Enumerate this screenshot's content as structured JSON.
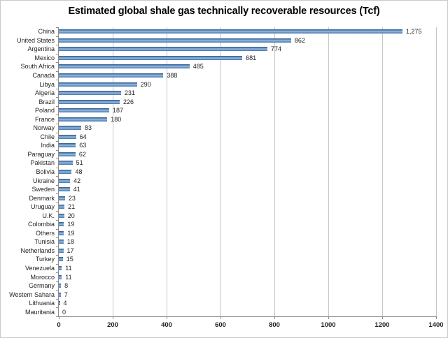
{
  "title": "Estimated global shale gas technically recoverable resources (Tcf)",
  "colors": {
    "bar": "#4f81bd",
    "gridline": "#c6c6c6",
    "axis": "#8c8c8c",
    "text": "#1f1f1f",
    "background": "#ffffff",
    "frame_border": "#c9c9c9"
  },
  "chart_data": {
    "type": "bar",
    "orientation": "horizontal",
    "title": "Estimated global shale gas technically recoverable resources (Tcf)",
    "xlabel": "",
    "ylabel": "",
    "xlim": [
      0,
      1400
    ],
    "x_ticks": [
      0,
      200,
      400,
      600,
      800,
      1000,
      1200,
      1400
    ],
    "grid": true,
    "legend": false,
    "categories": [
      "China",
      "United States",
      "Argentina",
      "Mexico",
      "South Africa",
      "Canada",
      "Libya",
      "Algeria",
      "Brazil",
      "Poland",
      "France",
      "Norway",
      "Chile",
      "India",
      "Paraguay",
      "Pakistan",
      "Bolivia",
      "Ukraine",
      "Sweden",
      "Denmark",
      "Uruguay",
      "U.K.",
      "Colombia",
      "Others",
      "Tunisia",
      "Netherlands",
      "Turkey",
      "Venezuela",
      "Morocco",
      "Germany",
      "Western Sahara",
      "Lithuania",
      "Mauritania"
    ],
    "values": [
      1275,
      862,
      774,
      681,
      485,
      388,
      290,
      231,
      226,
      187,
      180,
      83,
      64,
      63,
      62,
      51,
      48,
      42,
      41,
      23,
      21,
      20,
      19,
      19,
      18,
      17,
      15,
      11,
      11,
      8,
      7,
      4,
      0
    ],
    "value_labels": [
      "1,275",
      "862",
      "774",
      "681",
      "485",
      "388",
      "290",
      "231",
      "226",
      "187",
      "180",
      "83",
      "64",
      "63",
      "62",
      "51",
      "48",
      "42",
      "41",
      "23",
      "21",
      "20",
      "19",
      "19",
      "18",
      "17",
      "15",
      "11",
      "11",
      "8",
      "7",
      "4",
      "0"
    ]
  }
}
